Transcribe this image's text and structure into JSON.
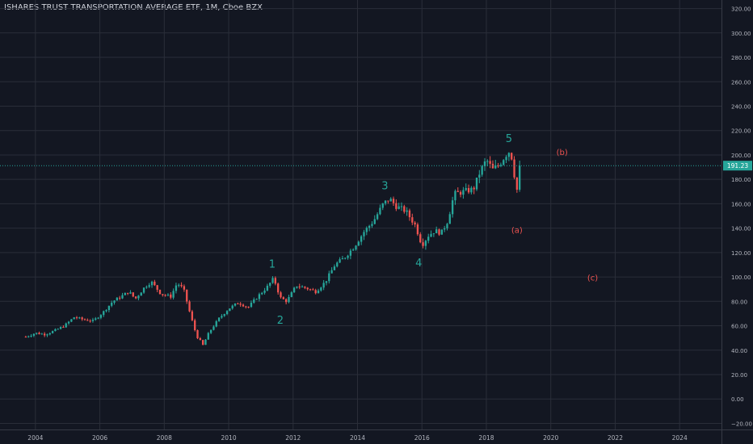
{
  "header": {
    "symbol_title": "ISHARES TRUST TRANSPORTATION AVERAGE ETF, 1M, Cboe BZX"
  },
  "colors": {
    "background": "#131722",
    "grid": "#2a2e39",
    "up": "#26a69a",
    "down": "#ef5350",
    "axis_text": "#b2b5be",
    "wave_impulse": "#26a69a",
    "wave_corrective": "#ef5350",
    "price_tag_bg": "#26a69a"
  },
  "chart_data": {
    "type": "candlestick",
    "title": "ISHARES TRUST TRANSPORTATION AVERAGE ETF, 1M, Cboe BZX",
    "interval": "1M",
    "exchange": "Cboe BZX",
    "x_range": [
      2002.9,
      2025.3
    ],
    "ylim": [
      -25,
      327
    ],
    "y_scale": "linear",
    "grid": true,
    "x_ticks": [
      "2004",
      "2006",
      "2008",
      "2010",
      "2012",
      "2014",
      "2016",
      "2018",
      "2020",
      "2022",
      "2024"
    ],
    "y_ticks": [
      "320.00",
      "300.00",
      "280.00",
      "260.00",
      "240.00",
      "220.00",
      "200.00",
      "180.00",
      "160.00",
      "140.00",
      "120.00",
      "100.00",
      "80.00",
      "60.00",
      "40.00",
      "20.00",
      "0.00",
      "−20.00"
    ],
    "last_price": 191.23,
    "last_price_label": "191.23",
    "price_path": [
      [
        2003.7,
        51
      ],
      [
        2004.0,
        54
      ],
      [
        2004.3,
        53
      ],
      [
        2004.6,
        56
      ],
      [
        2004.9,
        60
      ],
      [
        2005.2,
        67
      ],
      [
        2005.5,
        65
      ],
      [
        2005.8,
        64
      ],
      [
        2006.1,
        71
      ],
      [
        2006.4,
        80
      ],
      [
        2006.6,
        83
      ],
      [
        2006.9,
        88
      ],
      [
        2007.1,
        82
      ],
      [
        2007.4,
        92
      ],
      [
        2007.6,
        96
      ],
      [
        2007.9,
        86
      ],
      [
        2008.2,
        84
      ],
      [
        2008.4,
        95
      ],
      [
        2008.6,
        90
      ],
      [
        2008.8,
        70
      ],
      [
        2009.0,
        52
      ],
      [
        2009.2,
        44
      ],
      [
        2009.4,
        55
      ],
      [
        2009.7,
        66
      ],
      [
        2010.0,
        74
      ],
      [
        2010.3,
        79
      ],
      [
        2010.6,
        75
      ],
      [
        2010.9,
        84
      ],
      [
        2011.2,
        92
      ],
      [
        2011.4,
        99
      ],
      [
        2011.6,
        83
      ],
      [
        2011.8,
        80
      ],
      [
        2012.1,
        93
      ],
      [
        2012.4,
        91
      ],
      [
        2012.7,
        88
      ],
      [
        2013.0,
        96
      ],
      [
        2013.3,
        110
      ],
      [
        2013.6,
        116
      ],
      [
        2013.9,
        125
      ],
      [
        2014.2,
        137
      ],
      [
        2014.5,
        146
      ],
      [
        2014.8,
        160
      ],
      [
        2015.0,
        164
      ],
      [
        2015.2,
        158
      ],
      [
        2015.5,
        154
      ],
      [
        2015.8,
        142
      ],
      [
        2016.0,
        126
      ],
      [
        2016.2,
        134
      ],
      [
        2016.4,
        138
      ],
      [
        2016.6,
        136
      ],
      [
        2016.8,
        146
      ],
      [
        2017.0,
        168
      ],
      [
        2017.3,
        170
      ],
      [
        2017.6,
        172
      ],
      [
        2017.8,
        186
      ],
      [
        2018.0,
        196
      ],
      [
        2018.2,
        188
      ],
      [
        2018.4,
        192
      ],
      [
        2018.6,
        200
      ],
      [
        2018.75,
        204
      ],
      [
        2018.9,
        178
      ],
      [
        2019.0,
        165
      ],
      [
        2019.1,
        191.23
      ]
    ],
    "annotations": [
      {
        "text": "1",
        "x": 2011.35,
        "y": 110,
        "group": "impulse"
      },
      {
        "text": "2",
        "x": 2011.6,
        "y": 64,
        "group": "impulse"
      },
      {
        "text": "3",
        "x": 2014.85,
        "y": 174,
        "group": "impulse"
      },
      {
        "text": "4",
        "x": 2015.9,
        "y": 111,
        "group": "impulse"
      },
      {
        "text": "5",
        "x": 2018.7,
        "y": 213,
        "group": "impulse"
      },
      {
        "text": "(a)",
        "x": 2018.95,
        "y": 138,
        "group": "corrective"
      },
      {
        "text": "(b)",
        "x": 2020.35,
        "y": 202,
        "group": "corrective"
      },
      {
        "text": "(c)",
        "x": 2021.3,
        "y": 99,
        "group": "corrective"
      }
    ]
  }
}
